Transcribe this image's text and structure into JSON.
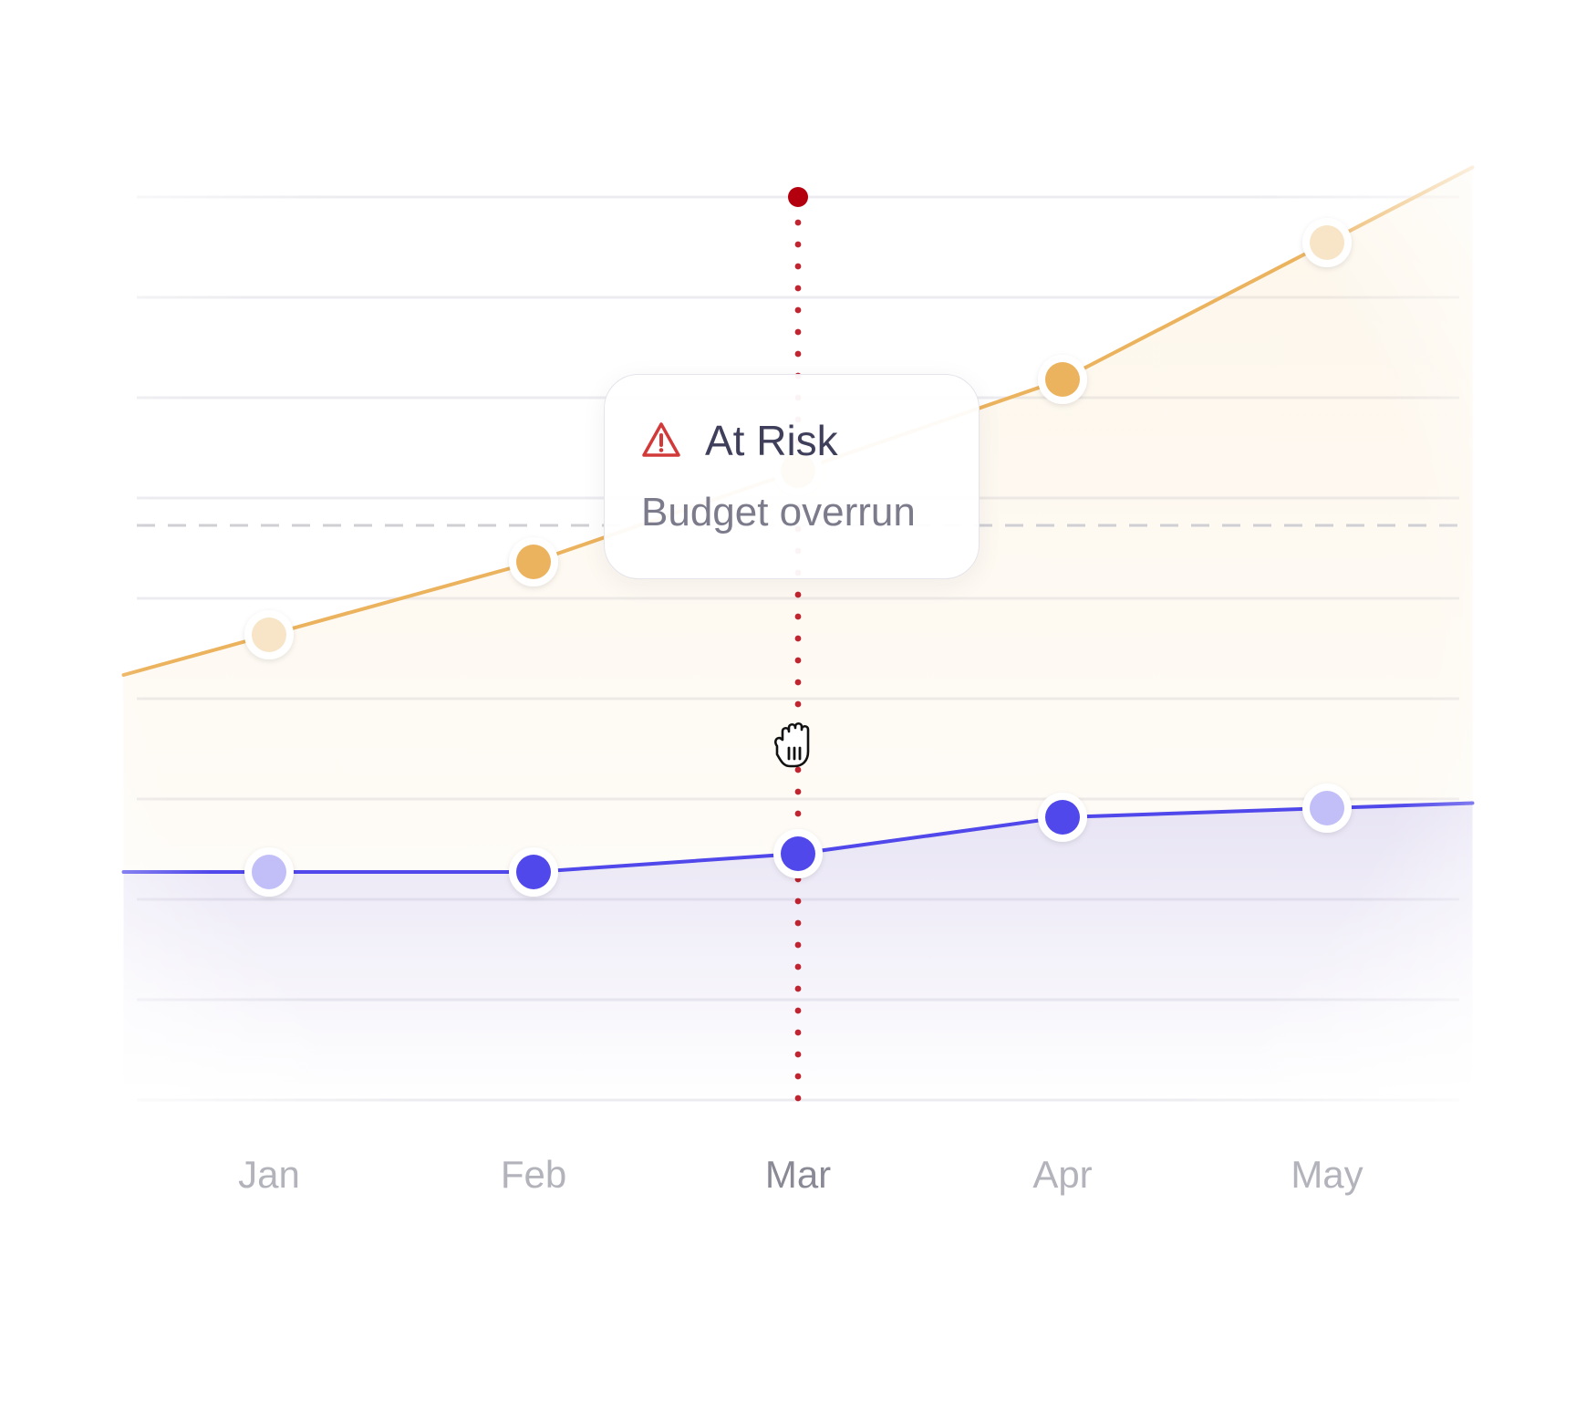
{
  "chart_data": {
    "type": "line",
    "categories": [
      "Jan",
      "Feb",
      "Mar",
      "Apr",
      "May"
    ],
    "series": [
      {
        "values": [
          51,
          59,
          69,
          79,
          94
        ],
        "color": "#ecb35e",
        "area": true
      },
      {
        "values": [
          25,
          25,
          27,
          31,
          32
        ],
        "color": "#5048ea",
        "area": true
      }
    ],
    "ylim": [
      0,
      100
    ],
    "grid": true,
    "threshold": 63,
    "highlighted_category": "Mar",
    "marker_color": "#b4000e"
  },
  "tooltip": {
    "title": "At Risk",
    "subtitle": "Budget overrun",
    "icon": "warning-triangle-icon",
    "icon_color": "#d23a3a"
  },
  "cursor": {
    "icon": "grab-hand-icon"
  }
}
